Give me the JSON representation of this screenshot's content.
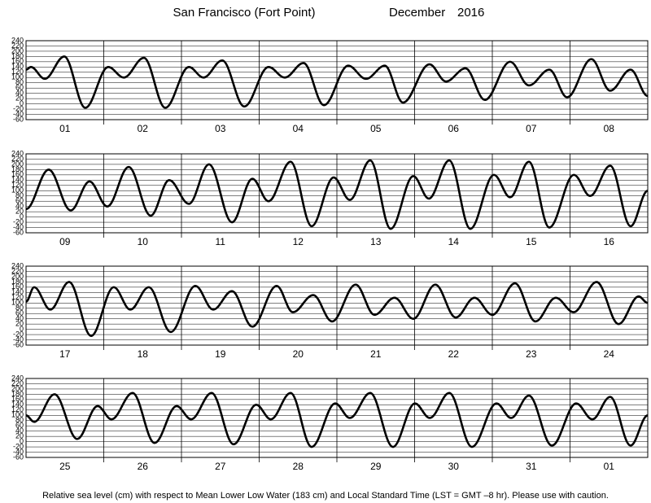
{
  "title": "San Francisco (Fort Point)",
  "month": "December",
  "year": "2016",
  "footer": "Relative sea level (cm) with respect to Mean Lower Low Water (183 cm) and Local Standard Time (LST = GMT –8 hr). Please use with caution.",
  "chart_data": [
    {
      "type": "line",
      "color": "#000000",
      "grid": true,
      "categories": [
        "01",
        "02",
        "03",
        "04",
        "05",
        "06",
        "07",
        "08"
      ],
      "xlim": [
        0,
        192
      ],
      "xticks": [
        24,
        48,
        72,
        96,
        120,
        144,
        168
      ],
      "ylim": [
        -60,
        240
      ],
      "yticks": [
        -60,
        -40,
        -20,
        0,
        20,
        40,
        60,
        80,
        100,
        120,
        140,
        160,
        180,
        200,
        220,
        240
      ],
      "x": [
        0,
        1.5,
        5.8,
        11.8,
        18.3,
        25.4,
        30.2,
        36.4,
        43,
        50.3,
        54.8,
        60.6,
        67.4,
        74.9,
        79.9,
        85.7,
        92,
        99.5,
        105,
        110.8,
        116.4,
        124.6,
        129.7,
        135.7,
        141.7,
        149.5,
        155.3,
        161.6,
        167.1,
        174.6,
        180.4,
        186.7,
        192
      ],
      "values": [
        130,
        140,
        95,
        180,
        -15,
        140,
        100,
        175,
        -15,
        140,
        100,
        165,
        -10,
        140,
        100,
        155,
        -5,
        145,
        95,
        145,
        5,
        150,
        85,
        135,
        15,
        160,
        70,
        130,
        25,
        170,
        50,
        130,
        30
      ]
    },
    {
      "type": "line",
      "color": "#000000",
      "grid": true,
      "categories": [
        "09",
        "10",
        "11",
        "12",
        "13",
        "14",
        "15",
        "16"
      ],
      "xlim": [
        0,
        192
      ],
      "xticks": [
        24,
        48,
        72,
        96,
        120,
        144,
        168
      ],
      "ylim": [
        -60,
        240
      ],
      "yticks": [
        -60,
        -40,
        -20,
        0,
        20,
        40,
        60,
        80,
        100,
        120,
        140,
        160,
        180,
        200,
        220,
        240
      ],
      "x": [
        0,
        7,
        13.8,
        19.6,
        25.1,
        31.7,
        38.5,
        44.2,
        50.3,
        56.5,
        63.6,
        69.9,
        74.9,
        81.7,
        88.2,
        95,
        100,
        106.3,
        112.6,
        119.6,
        124.4,
        130.7,
        137.2,
        144.5,
        149.5,
        155.3,
        161.6,
        169.2,
        174.2,
        180.4,
        186.7,
        192
      ],
      "values": [
        30,
        180,
        25,
        135,
        40,
        190,
        5,
        140,
        50,
        200,
        -20,
        145,
        60,
        210,
        -35,
        150,
        65,
        215,
        -45,
        155,
        70,
        215,
        -45,
        160,
        75,
        210,
        -40,
        160,
        80,
        195,
        -35,
        100
      ]
    },
    {
      "type": "line",
      "color": "#000000",
      "grid": true,
      "categories": [
        "17",
        "18",
        "19",
        "20",
        "21",
        "22",
        "23",
        "24"
      ],
      "xlim": [
        0,
        192
      ],
      "xticks": [
        24,
        48,
        72,
        96,
        120,
        144,
        168
      ],
      "ylim": [
        -60,
        240
      ],
      "yticks": [
        -60,
        -40,
        -20,
        0,
        20,
        40,
        60,
        80,
        100,
        120,
        140,
        160,
        180,
        200,
        220,
        240
      ],
      "x": [
        0,
        2.5,
        7.5,
        13.3,
        20.1,
        27.1,
        32.2,
        37.9,
        44.7,
        52.3,
        57.8,
        63.6,
        69.9,
        77.4,
        82.4,
        88.7,
        94.5,
        101.8,
        107.6,
        113.8,
        119.6,
        126.4,
        132.7,
        138.5,
        144,
        151,
        157.3,
        163.6,
        169.1,
        176.2,
        183,
        189.2,
        192
      ],
      "values": [
        105,
        160,
        75,
        180,
        -25,
        160,
        75,
        160,
        -10,
        165,
        75,
        145,
        10,
        165,
        65,
        130,
        30,
        170,
        55,
        120,
        40,
        170,
        45,
        120,
        55,
        175,
        30,
        120,
        65,
        180,
        20,
        125,
        100
      ]
    },
    {
      "type": "line",
      "color": "#000000",
      "grid": true,
      "categories": [
        "25",
        "26",
        "27",
        "28",
        "29",
        "30",
        "31",
        "01"
      ],
      "xlim": [
        0,
        192
      ],
      "xticks": [
        24,
        48,
        72,
        96,
        120,
        144,
        168
      ],
      "ylim": [
        -60,
        240
      ],
      "yticks": [
        -60,
        -40,
        -20,
        0,
        20,
        40,
        60,
        80,
        100,
        120,
        140,
        160,
        180,
        200,
        220,
        240
      ],
      "x": [
        0,
        2.5,
        8.8,
        15.8,
        22.1,
        26.4,
        32.9,
        39.7,
        46.5,
        51,
        57.3,
        64.1,
        71.1,
        75.6,
        81.7,
        88.2,
        95.5,
        100,
        106.3,
        113.3,
        120.1,
        124.7,
        130.7,
        137.7,
        145.3,
        149.8,
        155.3,
        162.4,
        169.9,
        174.9,
        180.4,
        186.7,
        192
      ],
      "values": [
        100,
        75,
        180,
        10,
        135,
        85,
        185,
        -5,
        135,
        85,
        185,
        -10,
        140,
        85,
        185,
        -20,
        145,
        90,
        185,
        -20,
        145,
        90,
        185,
        -20,
        145,
        90,
        175,
        -15,
        145,
        85,
        170,
        -15,
        100
      ]
    }
  ]
}
